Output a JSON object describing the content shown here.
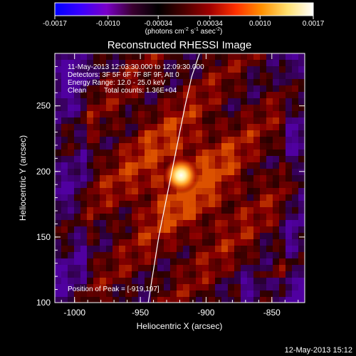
{
  "colorbar": {
    "ticks": [
      -0.0017,
      -0.001,
      -0.00034,
      0.00034,
      0.001,
      0.0017
    ],
    "tick_labels": [
      "-0.0017",
      "-0.0010",
      "-0.00034",
      "0.00034",
      "0.0010",
      "0.0017"
    ],
    "unit_label_base": "(photons cm",
    "unit_label_exp1": "-2",
    "unit_label_mid": " s",
    "unit_label_exp2": "-1",
    "unit_label_mid2": " asec",
    "unit_label_exp3": "-2",
    "unit_label_end": ")",
    "range": [
      -0.0017,
      0.0017
    ],
    "colors": [
      "#0000ff",
      "#3a00ff",
      "#7a00c8",
      "#3a0030",
      "#000000",
      "#4a0000",
      "#a00000",
      "#ff3000",
      "#ff9000",
      "#ffe070",
      "#ffffff"
    ]
  },
  "title": "Reconstructed RHESSI Image",
  "info": {
    "line1": "11-May-2013 12:03:30.000 to 12:09:30.000",
    "line2": "Detectors: 3F 5F 6F 7F 8F 9F, Att 0",
    "line3": "Energy Range: 12.0 - 25.0 keV",
    "line4_a": "Clean",
    "line4_b": "Total counts: 1.36E+04",
    "peak": "Position of Peak = [-919,197]"
  },
  "footer": {
    "date": "12-May-2013 15:12"
  },
  "chart_data": {
    "type": "heatmap",
    "title": "Reconstructed RHESSI Image",
    "xlabel": "Heliocentric X (arcsec)",
    "ylabel": "Heliocentric Y (arcsec)",
    "xlim": [
      -1015,
      -825
    ],
    "ylim": [
      100,
      290
    ],
    "x_ticks": [
      -1000,
      -950,
      -900,
      -850
    ],
    "x_tick_labels": [
      "-1000",
      "-950",
      "-900",
      "-850"
    ],
    "y_ticks": [
      100,
      150,
      200,
      250
    ],
    "y_tick_labels": [
      "100",
      "150",
      "200",
      "250"
    ],
    "peak": {
      "x": -919,
      "y": 197,
      "value": 0.0017
    },
    "limb_curve": {
      "x": [
        -944,
        -940,
        -936,
        -932,
        -928,
        -924,
        -920,
        -916,
        -911,
        -905
      ],
      "y": [
        100,
        125,
        150,
        170,
        190,
        210,
        230,
        250,
        272,
        290
      ]
    }
  }
}
